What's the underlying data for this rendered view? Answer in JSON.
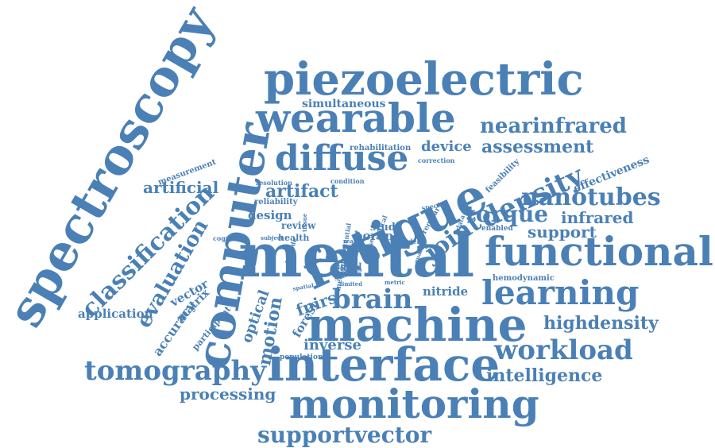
{
  "colors": {
    "word": "#4a80b5",
    "background": "#ffffff"
  },
  "words": [
    "spectroscopy",
    "computer",
    "piezoelectric",
    "wearable",
    "diffuse",
    "fatigue",
    "density",
    "mental",
    "functional",
    "machine",
    "interface",
    "monitoring",
    "brain",
    "learning",
    "workload",
    "tomography",
    "supportvector",
    "classification",
    "evaluation",
    "nearinfrared",
    "assessment",
    "nanotubes",
    "torque",
    "infrared",
    "support",
    "intelligence",
    "highdensity",
    "processing",
    "artifact",
    "artificial",
    "joint",
    "device",
    "simultaneous",
    "motion",
    "optical",
    "fnirs",
    "inverse",
    "accuracy",
    "vector",
    "matrix",
    "application",
    "design",
    "nitride",
    "boron",
    "effectiveness",
    "measurement",
    "rehabilitation",
    "correction",
    "resolution",
    "condition",
    "feasibility",
    "reliability",
    "review",
    "study",
    "health",
    "cognitive",
    "subject",
    "hemodynamic",
    "population",
    "participant",
    "forest",
    "signal",
    "method",
    "studies",
    "metric",
    "limited",
    "spatial",
    "enabled",
    "specific",
    "real",
    "model",
    "potential",
    "regular",
    "data",
    "based",
    "critical",
    "provide",
    "quality",
    "tissue"
  ]
}
